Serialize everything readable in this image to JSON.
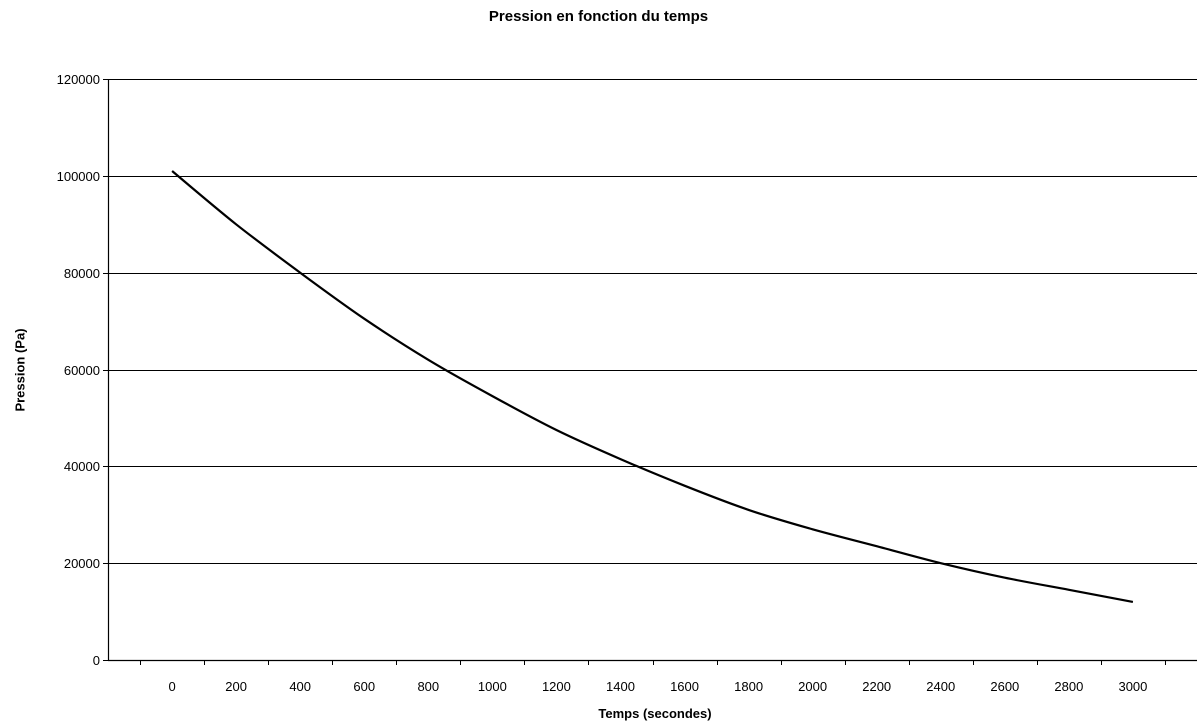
{
  "chart_data": {
    "type": "line",
    "title": "Pression en fonction du temps",
    "xlabel": "Temps (secondes)",
    "ylabel": "Pression (Pa)",
    "xlim": [
      -200,
      3200
    ],
    "ylim": [
      0,
      120000
    ],
    "x_ticks": [
      0,
      200,
      400,
      600,
      800,
      1000,
      1200,
      1400,
      1600,
      1800,
      2000,
      2200,
      2400,
      2600,
      2800,
      3000
    ],
    "y_ticks": [
      0,
      20000,
      40000,
      60000,
      80000,
      100000,
      120000
    ],
    "grid": "horizontal",
    "legend": "none",
    "line_color": "#000000",
    "series": [
      {
        "x": [
          0,
          200,
          400,
          600,
          800,
          1000,
          1200,
          1400,
          1600,
          1800,
          2000,
          2200,
          2400,
          2600,
          2800,
          3000
        ],
        "values": [
          101000,
          90000,
          80000,
          70500,
          62000,
          54500,
          47500,
          41500,
          36000,
          31000,
          27000,
          23500,
          20000,
          17000,
          14500,
          12000
        ]
      }
    ]
  }
}
